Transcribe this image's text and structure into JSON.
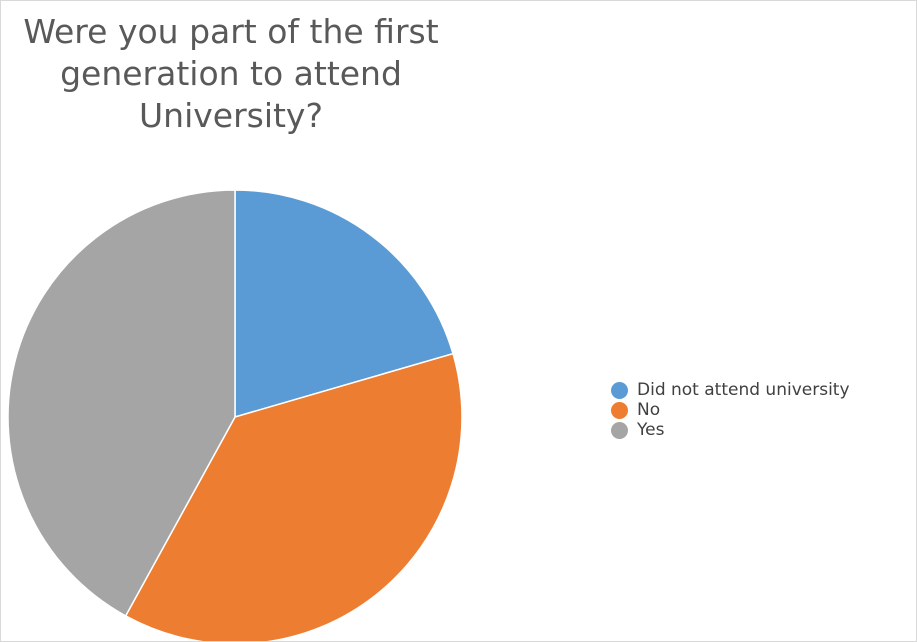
{
  "chart_data": {
    "type": "pie",
    "title": "Were you part of the first generation to attend University?",
    "categories": [
      "Did not attend university",
      "No",
      "Yes"
    ],
    "values": [
      20.5,
      37.5,
      42
    ],
    "colors": [
      "#5b9bd5",
      "#ed7d31",
      "#a5a5a5"
    ],
    "legend_position": "right"
  }
}
